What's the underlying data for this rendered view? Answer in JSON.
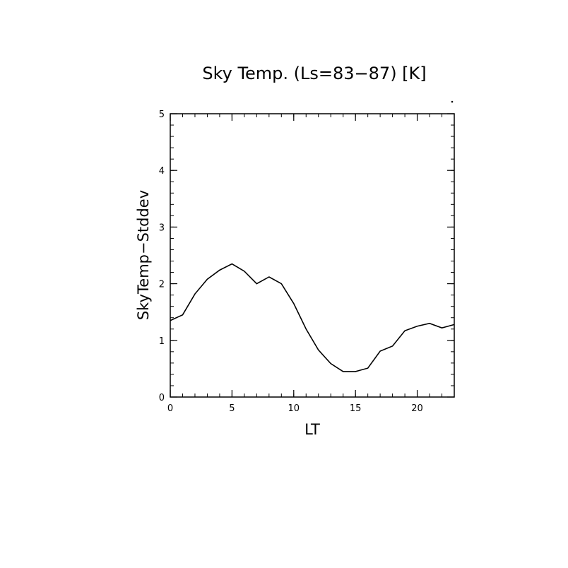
{
  "chart_data": {
    "type": "line",
    "title": "Sky Temp. (Ls=83−87) [K]",
    "xlabel": "LT",
    "ylabel": "SkyTemp−Stddev",
    "xlim": [
      0,
      23
    ],
    "ylim": [
      0,
      5
    ],
    "xticks": [
      0,
      5,
      10,
      15,
      20
    ],
    "yticks": [
      0,
      1,
      2,
      3,
      4,
      5
    ],
    "grid": false,
    "series": [
      {
        "x": [
          0,
          1,
          2,
          3,
          4,
          5,
          6,
          7,
          8,
          9,
          10,
          11,
          12,
          13,
          14,
          15,
          16,
          17,
          18,
          19,
          20,
          21,
          22,
          23
        ],
        "values": [
          1.35,
          1.45,
          1.82,
          2.08,
          2.24,
          2.35,
          2.22,
          2.0,
          2.12,
          2.0,
          1.65,
          1.2,
          0.83,
          0.59,
          0.45,
          0.45,
          0.51,
          0.81,
          0.9,
          1.17,
          1.25,
          1.3,
          1.22,
          1.28
        ]
      }
    ],
    "colors": {
      "line": "#000000",
      "axes": "#000000",
      "background": "#ffffff"
    }
  }
}
